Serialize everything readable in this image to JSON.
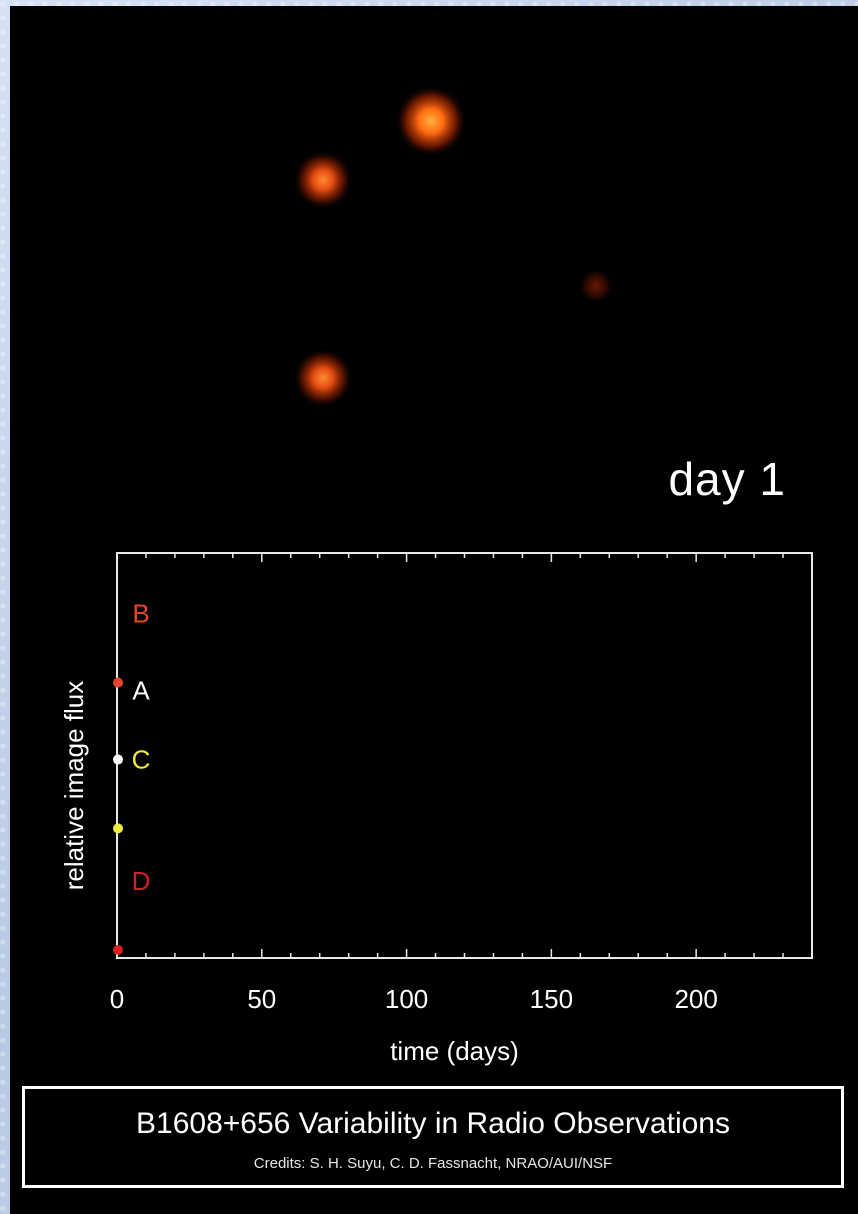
{
  "day_label": "day 1",
  "caption": {
    "title": "B1608+656 Variability in Radio Observations",
    "credits": "Credits: S. H. Suyu, C. D. Fassnacht, NRAO/AUI/NSF"
  },
  "sky_sources": [
    {
      "name": "B",
      "brightness": 1.0,
      "color": "#ff6a10"
    },
    {
      "name": "A",
      "brightness": 0.8,
      "color": "#ff5a10"
    },
    {
      "name": "C",
      "brightness": 0.8,
      "color": "#ff5010"
    },
    {
      "name": "D",
      "brightness": 0.25,
      "color": "#a02000"
    }
  ],
  "chart_data": {
    "type": "line",
    "title": "",
    "xlabel": "time (days)",
    "ylabel": "relative image flux",
    "xlim": [
      0,
      240
    ],
    "ylim": [
      0,
      1
    ],
    "x_ticks": [
      0,
      50,
      100,
      150,
      200
    ],
    "grid": false,
    "series": [
      {
        "name": "B",
        "color": "#e8442c",
        "x": [
          0
        ],
        "y": [
          0.68
        ]
      },
      {
        "name": "A",
        "color": "#ffffff",
        "x": [
          0
        ],
        "y": [
          0.49
        ]
      },
      {
        "name": "C",
        "color": "#f0ea3c",
        "x": [
          0
        ],
        "y": [
          0.32
        ]
      },
      {
        "name": "D",
        "color": "#d42020",
        "x": [
          0
        ],
        "y": [
          0.02
        ]
      }
    ]
  }
}
